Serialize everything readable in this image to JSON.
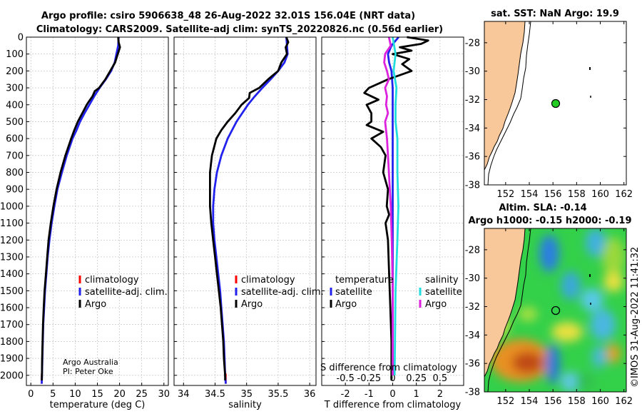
{
  "header": {
    "title_line1": "Argo profile: csiro 5906638_48 26-Aug-2022 32.01S 156.04E (NRT data)",
    "title_line2": "Climatology: CARS2009. Satellite-adj clim: synTS_20220826.nc (0.56d earlier)"
  },
  "credits": {
    "line1": "Argo Australia",
    "line2": "PI: Peter Oke",
    "timestamp": "©IMOS 31-Aug-2022 11:41:32"
  },
  "colors": {
    "climatology": "#ff0000",
    "satellite": "#2222ee",
    "argo": "#000000",
    "salinity_satellite": "#22dddd",
    "salinity_argo": "#dd22dd",
    "land": "#f8c89a",
    "marker": "#22cc22"
  },
  "chart_data": [
    {
      "id": "temperature",
      "type": "line",
      "title": "",
      "xlabel": "temperature (deg C)",
      "ylabel": "",
      "xlim": [
        -1,
        31
      ],
      "ylim": [
        2060,
        0
      ],
      "xticks": [
        "0",
        "5",
        "10",
        "15",
        "20",
        "25",
        "30"
      ],
      "yticks": [
        "0",
        "100",
        "200",
        "300",
        "400",
        "500",
        "600",
        "700",
        "800",
        "900",
        "1000",
        "1100",
        "1200",
        "1300",
        "1400",
        "1500",
        "1600",
        "1700",
        "1800",
        "1900",
        "2000"
      ],
      "legend": {
        "entries": [
          "climatology",
          "satellite-adj. clim.",
          "Argo"
        ],
        "placement": "lower-right"
      },
      "series": [
        {
          "name": "climatology",
          "color": "#ff0000",
          "depth": [
            1990,
            2050
          ],
          "values": [
            2.45,
            2.45
          ]
        },
        {
          "name": "satellite-adj. clim.",
          "color": "#2222ee",
          "depth": [
            0,
            50,
            100,
            150,
            200,
            250,
            300,
            350,
            400,
            450,
            500,
            550,
            600,
            700,
            800,
            900,
            1000,
            1100,
            1200,
            1300,
            1400,
            1500,
            1600,
            1700,
            1800,
            1900,
            2000,
            2050
          ],
          "values": [
            19.8,
            19.7,
            19.3,
            18.9,
            18.1,
            16.9,
            15.5,
            14.3,
            13.2,
            12.1,
            11.1,
            10.3,
            9.4,
            8.1,
            7.0,
            6.0,
            5.3,
            4.7,
            4.2,
            3.8,
            3.5,
            3.2,
            3.0,
            2.8,
            2.7,
            2.6,
            2.5,
            2.45
          ]
        },
        {
          "name": "Argo",
          "color": "#000000",
          "depth": [
            0,
            30,
            60,
            100,
            150,
            200,
            250,
            300,
            320,
            350,
            380,
            400,
            450,
            500,
            550,
            600,
            700,
            800,
            900,
            1000,
            1100,
            1200,
            1300,
            1400,
            1500,
            1600,
            1700,
            1800,
            1900,
            2000,
            2030
          ],
          "values": [
            19.7,
            19.8,
            20.1,
            19.6,
            19.0,
            17.9,
            16.8,
            15.4,
            14.4,
            13.9,
            13.1,
            12.6,
            11.6,
            10.6,
            9.8,
            9.1,
            7.8,
            6.7,
            5.8,
            5.1,
            4.5,
            4.0,
            3.7,
            3.4,
            3.1,
            2.9,
            2.75,
            2.65,
            2.55,
            2.5,
            2.48
          ]
        }
      ]
    },
    {
      "id": "salinity",
      "type": "line",
      "xlabel": "salinity",
      "ylabel": "",
      "xlim": [
        33.85,
        36.1
      ],
      "ylim": [
        2060,
        0
      ],
      "xticks": [
        "34",
        "34.5",
        "35",
        "35.5",
        "36"
      ],
      "legend": {
        "entries": [
          "climatology",
          "satellite-adj. clim.",
          "Argo"
        ],
        "placement": "lower-right"
      },
      "series": [
        {
          "name": "climatology",
          "color": "#ff0000",
          "depth": [
            1990,
            2050
          ],
          "values": [
            34.67,
            34.67
          ]
        },
        {
          "name": "satellite-adj. clim.",
          "color": "#2222ee",
          "depth": [
            0,
            50,
            100,
            150,
            200,
            250,
            300,
            350,
            400,
            450,
            500,
            600,
            700,
            800,
            900,
            1000,
            1100,
            1200,
            1300,
            1400,
            1500,
            1600,
            1700,
            1800,
            1900,
            2000,
            2050
          ],
          "values": [
            35.63,
            35.64,
            35.65,
            35.6,
            35.5,
            35.38,
            35.25,
            35.13,
            35.02,
            34.93,
            34.84,
            34.7,
            34.6,
            34.53,
            34.49,
            34.47,
            34.47,
            34.49,
            34.52,
            34.55,
            34.58,
            34.6,
            34.62,
            34.64,
            34.65,
            34.66,
            34.67
          ]
        },
        {
          "name": "Argo",
          "color": "#000000",
          "depth": [
            0,
            30,
            60,
            100,
            150,
            200,
            250,
            300,
            330,
            360,
            400,
            450,
            500,
            550,
            600,
            700,
            800,
            900,
            1000,
            1100,
            1200,
            1300,
            1400,
            1500,
            1600,
            1700,
            1800,
            1900,
            2000,
            2030
          ],
          "values": [
            35.63,
            35.66,
            35.62,
            35.64,
            35.55,
            35.5,
            35.34,
            35.2,
            35.05,
            35.04,
            34.92,
            34.82,
            34.7,
            34.6,
            34.52,
            34.45,
            34.42,
            34.42,
            34.42,
            34.44,
            34.47,
            34.5,
            34.53,
            34.56,
            34.59,
            34.61,
            34.63,
            34.64,
            34.66,
            34.66
          ]
        }
      ]
    },
    {
      "id": "difference",
      "type": "line",
      "xlabel": "T difference from climatology",
      "xlabel2": "S difference from climatology",
      "xlim": [
        -3,
        3
      ],
      "ylim": [
        2060,
        0
      ],
      "xticks": [
        "-2",
        "-1",
        "0",
        "1",
        "2"
      ],
      "xticks2": [
        "-0.5",
        "-0.25",
        "0",
        "0.25",
        "0.5"
      ],
      "legend": {
        "temperature_title": "temperature",
        "salinity_title": "salinity",
        "entries": [
          "satellite",
          "Argo",
          "satellite",
          "Argo"
        ]
      },
      "series": [
        {
          "name": "temperature satellite",
          "color": "#2222ee",
          "depth": [
            0,
            50,
            100,
            150,
            200,
            300,
            500,
            800,
            1000,
            1500,
            2000
          ],
          "values": [
            0.25,
            -0.05,
            -0.2,
            -0.15,
            -0.05,
            0.0,
            0.0,
            0.0,
            0.0,
            0.0,
            0.0
          ]
        },
        {
          "name": "temperature Argo",
          "color": "#000000",
          "depth": [
            0,
            20,
            40,
            60,
            80,
            100,
            130,
            160,
            200,
            250,
            300,
            330,
            370,
            400,
            450,
            500,
            520,
            560,
            600,
            650,
            700,
            800,
            900,
            1000,
            1050,
            1100,
            1200,
            1400,
            1600,
            1800,
            2000,
            2030
          ],
          "values": [
            0.6,
            1.5,
            1.2,
            0.3,
            0.8,
            0.0,
            0.7,
            0.4,
            0.8,
            -0.2,
            -1.0,
            -1.2,
            -0.6,
            -1.1,
            -0.9,
            -0.9,
            -1.1,
            -0.4,
            -0.9,
            -0.5,
            -0.3,
            -0.4,
            -0.2,
            -0.25,
            -0.15,
            -0.3,
            -0.2,
            -0.15,
            -0.1,
            -0.05,
            -0.05,
            -0.05
          ]
        },
        {
          "name": "salinity satellite",
          "color": "#22dddd",
          "depth": [
            0,
            100,
            200,
            300,
            400,
            500,
            600,
            800,
            1000,
            1200,
            1500,
            2000
          ],
          "values": [
            0.0,
            0.03,
            0.01,
            0.04,
            0.03,
            0.03,
            0.05,
            0.05,
            0.06,
            0.05,
            0.03,
            0.02
          ]
        },
        {
          "name": "salinity Argo",
          "color": "#dd22dd",
          "depth": [
            0,
            50,
            100,
            150,
            200,
            250,
            300,
            350,
            400,
            450,
            500,
            600,
            700,
            800,
            900,
            1000,
            1200,
            1500,
            1800,
            2000
          ],
          "values": [
            -0.04,
            -0.02,
            -0.08,
            -0.09,
            -0.06,
            -0.04,
            -0.08,
            -0.06,
            -0.07,
            -0.05,
            -0.08,
            -0.06,
            -0.05,
            -0.04,
            -0.03,
            -0.02,
            -0.01,
            0.0,
            0.0,
            0.0
          ]
        }
      ]
    },
    {
      "id": "map_sst",
      "type": "heatmap",
      "title": "sat. SST: NaN Argo: 19.9",
      "xlim": [
        150.2,
        162.2
      ],
      "ylim": [
        -38,
        -26.5
      ],
      "xticks": [
        "152",
        "154",
        "156",
        "158",
        "160",
        "162"
      ],
      "yticks": [
        "-28",
        "-30",
        "-32",
        "-34",
        "-36",
        "-38"
      ],
      "marker": {
        "lon": 156.04,
        "lat": -32.01
      }
    },
    {
      "id": "map_sla",
      "type": "heatmap",
      "title": "Altim. SLA: -0.14",
      "subtitle": "Argo h1000: -0.15 h2000: -0.19",
      "xlim": [
        150.2,
        162.2
      ],
      "ylim": [
        -38,
        -26.5
      ],
      "xticks": [
        "152",
        "154",
        "156",
        "158",
        "160",
        "162"
      ],
      "yticks": [
        "-28",
        "-30",
        "-32",
        "-34",
        "-36",
        "-38"
      ],
      "marker": {
        "lon": 156.04,
        "lat": -32.01
      }
    }
  ]
}
